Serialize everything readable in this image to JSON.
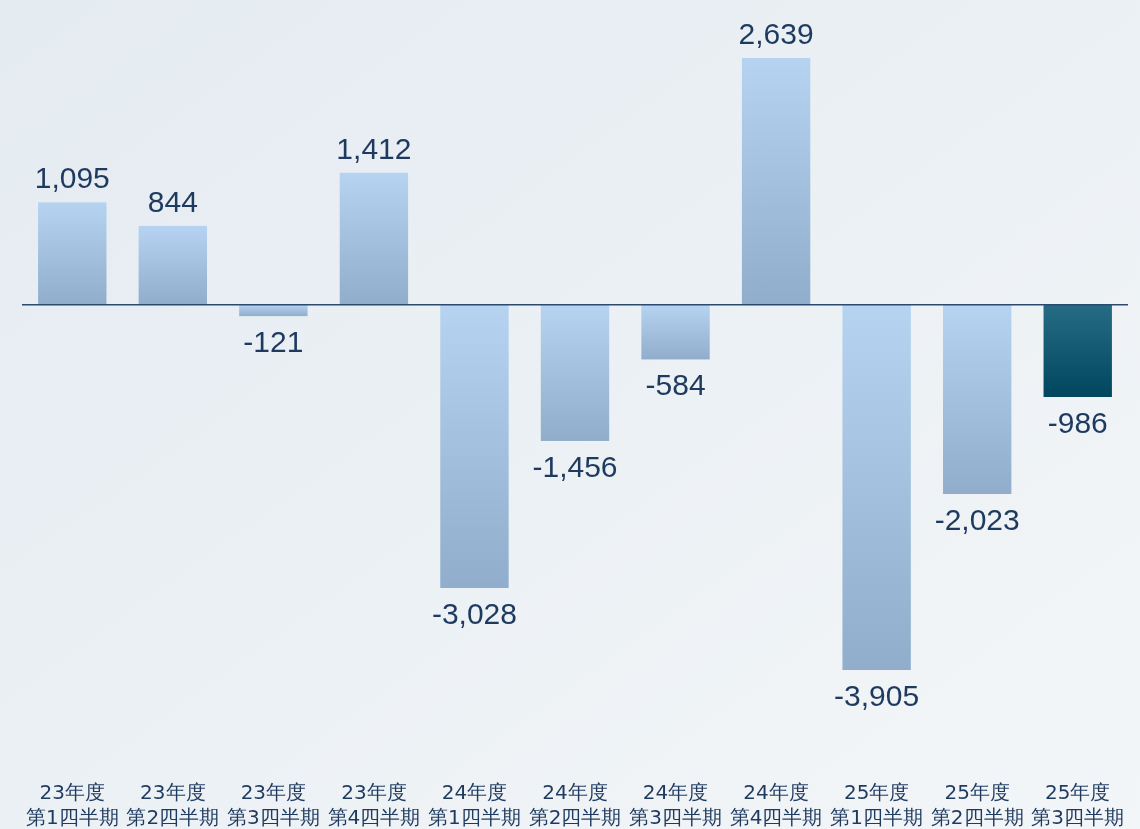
{
  "chart_data": {
    "type": "bar",
    "categories": [
      "23年度第1四半期",
      "23年度第2四半期",
      "23年度第3四半期",
      "23年度第4四半期",
      "24年度第1四半期",
      "24年度第2四半期",
      "24年度第3四半期",
      "24年度第4四半期",
      "25年度第1四半期",
      "25年度第2四半期",
      "25年度第3四半期"
    ],
    "values": [
      1095,
      844,
      -121,
      1412,
      -3028,
      -1456,
      -584,
      2639,
      -3905,
      -2023,
      -986
    ],
    "value_labels": [
      "1,095",
      "844",
      "-121",
      "1,412",
      "-3,028",
      "-1,456",
      "-584",
      "2,639",
      "-3,905",
      "-2,023",
      "-986"
    ],
    "colors": [
      "#a9cbef",
      "#a9cbef",
      "#a9cbef",
      "#a9cbef",
      "#a9cbef",
      "#a9cbef",
      "#a9cbef",
      "#a9cbef",
      "#a9cbef",
      "#a9cbef",
      "#00526f"
    ],
    "ref_lines": [
      {
        "axis": "y",
        "value": 0,
        "color": "#2c4a6e"
      }
    ],
    "grid": false
  }
}
